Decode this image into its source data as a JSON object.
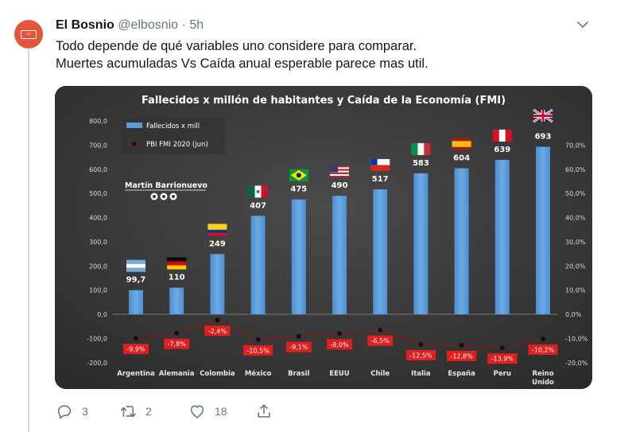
{
  "tweet": {
    "author_name": "El Bosnio",
    "handle": "@elbosnio",
    "separator": "·",
    "time": "5h",
    "text_line1": "Todo depende de qué variables uno considere para comparar.",
    "text_line2": "Muertes acumuladas Vs Caída anual esperable parece mas util.",
    "avatar_icon": "avatar-logo-icon",
    "menu_icon": "chevron-down-icon"
  },
  "actions": {
    "reply_count": "3",
    "retweet_count": "2",
    "like_count": "18"
  },
  "chart_data": {
    "type": "bar",
    "title": "Fallecidos x millón de habitantes y Caída de la Economía (FMI)",
    "watermark": "Martín Barrionuevo",
    "categories": [
      "Argentina",
      "Alemania",
      "Colombia",
      "México",
      "Brasil",
      "EEUU",
      "Chile",
      "Italia",
      "España",
      "Peru",
      "Reino Unido"
    ],
    "series": [
      {
        "name": "Fallecidos x mill",
        "type": "bar",
        "axis": "left",
        "color": "#5b9bd5",
        "values": [
          99.7,
          110,
          249,
          407,
          475,
          490,
          517,
          583,
          604,
          639,
          693
        ],
        "labels": [
          "99,7",
          "110",
          "249",
          "407",
          "475",
          "490",
          "517",
          "583",
          "604",
          "639",
          "693"
        ]
      },
      {
        "name": "PBI FMI 2020 (jun)",
        "type": "line",
        "axis": "right",
        "color": "#c00000",
        "values": [
          -9.9,
          -7.8,
          -2.4,
          -10.5,
          -9.1,
          -8.0,
          -6.5,
          -12.5,
          -12.8,
          -13.9,
          -10.2
        ],
        "labels": [
          "-9,9%",
          "-7,8%",
          "-2,4%",
          "-10,5%",
          "-9,1%",
          "-8,0%",
          "-6,5%",
          "-12,5%",
          "-12,8%",
          "-13,9%",
          "-10,2%"
        ]
      }
    ],
    "y_left": {
      "ylim": [
        -200,
        800
      ],
      "ticks": [
        -200,
        -100,
        0,
        100,
        200,
        300,
        400,
        500,
        600,
        700,
        800
      ],
      "tick_labels": [
        "-200,0",
        "-100,0",
        "0,0",
        "100,0",
        "200,0",
        "300,0",
        "400,0",
        "500,0",
        "600,0",
        "700,0",
        "800,0"
      ]
    },
    "y_right": {
      "ylim": [
        -20,
        70
      ],
      "ticks": [
        -20,
        -10,
        0,
        10,
        20,
        30,
        40,
        50,
        60,
        70
      ],
      "tick_labels": [
        "-20,0%",
        "-10,0%",
        "0,0%",
        "10,0%",
        "20,0%",
        "30,0%",
        "40,0%",
        "50,0%",
        "60,0%",
        "70,0%"
      ]
    },
    "legend_position": "top-left",
    "grid": false,
    "flags": [
      "argentina-flag-icon",
      "germany-flag-icon",
      "colombia-flag-icon",
      "mexico-flag-icon",
      "brazil-flag-icon",
      "usa-flag-icon",
      "chile-flag-icon",
      "italy-flag-icon",
      "spain-flag-icon",
      "peru-flag-icon",
      "uk-flag-icon"
    ],
    "watermark_icons": [
      "twitter-icon",
      "facebook-icon",
      "instagram-icon"
    ]
  }
}
